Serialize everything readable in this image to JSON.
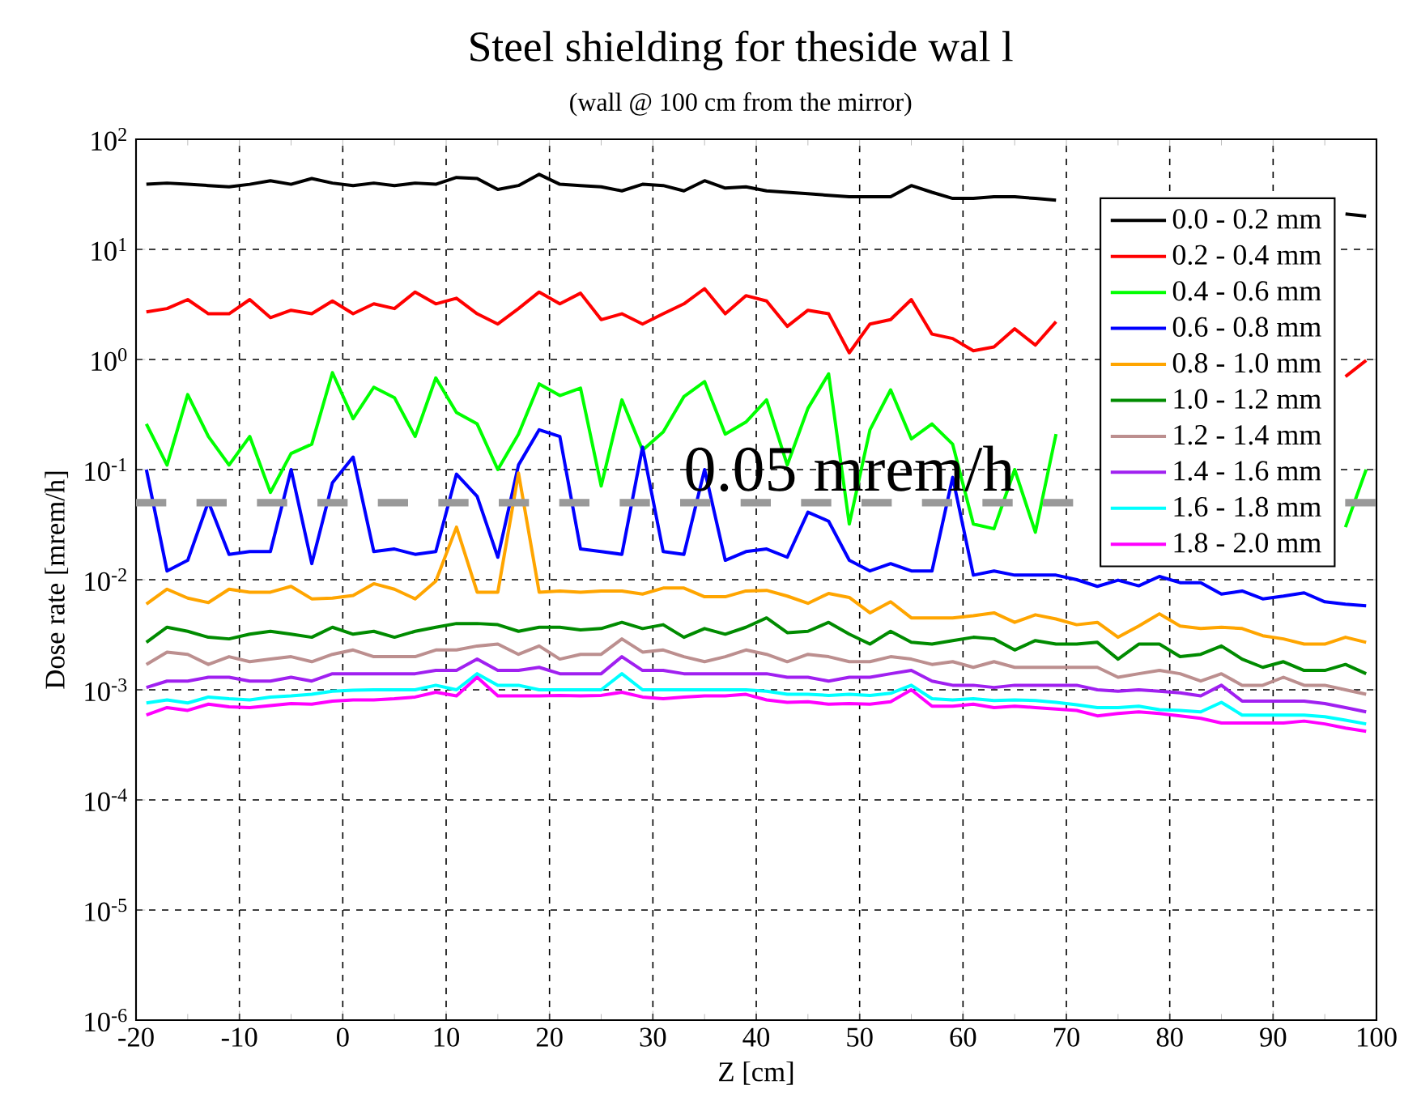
{
  "chart_data": {
    "type": "line",
    "title": "Steel shielding for theside wal l",
    "subtitle": "(wall @ 100 cm from the mirror)",
    "xlabel": "Z [cm]",
    "ylabel": "Dose rate [mrem/h]",
    "x": [
      -19,
      -17,
      -15,
      -13,
      -11,
      -9,
      -7,
      -5,
      -3,
      -1,
      1,
      3,
      5,
      7,
      9,
      11,
      13,
      15,
      17,
      19,
      21,
      23,
      25,
      27,
      29,
      31,
      33,
      35,
      37,
      39,
      41,
      43,
      45,
      47,
      49,
      51,
      53,
      55,
      57,
      59,
      61,
      63,
      65,
      67,
      69,
      71,
      73,
      75,
      77,
      79,
      81,
      83,
      85,
      87,
      89,
      91,
      93,
      95,
      97,
      99
    ],
    "series": [
      {
        "name": "0.0 - 0.2 mm",
        "color": "#000000",
        "values": [
          39,
          40,
          39,
          38,
          37,
          39,
          42,
          39,
          44,
          40,
          38,
          40,
          38,
          40,
          39,
          45,
          44,
          35,
          38,
          48,
          39,
          38,
          37,
          34,
          39,
          38,
          34,
          42,
          36,
          37,
          34,
          33,
          32,
          31,
          30,
          30,
          30,
          38,
          33,
          29,
          29,
          30,
          30,
          29,
          28,
          null,
          null,
          null,
          null,
          null,
          null,
          null,
          null,
          null,
          null,
          null,
          null,
          null,
          21,
          20
        ]
      },
      {
        "name": "0.2 - 0.4 mm",
        "color": "#ff0000",
        "values": [
          2.7,
          2.9,
          3.5,
          2.6,
          2.6,
          3.5,
          2.4,
          2.8,
          2.6,
          3.4,
          2.6,
          3.2,
          2.9,
          4.1,
          3.2,
          3.6,
          2.6,
          2.1,
          2.9,
          4.1,
          3.2,
          4.0,
          2.3,
          2.6,
          2.1,
          2.6,
          3.2,
          4.4,
          2.6,
          3.8,
          3.4,
          2.0,
          2.8,
          2.6,
          1.15,
          2.1,
          2.3,
          3.5,
          1.7,
          1.55,
          1.2,
          1.3,
          1.9,
          1.35,
          2.2,
          null,
          null,
          null,
          null,
          null,
          null,
          null,
          null,
          null,
          null,
          null,
          null,
          null,
          0.7,
          0.98
        ]
      },
      {
        "name": "0.4 - 0.6 mm",
        "color": "#00ff00",
        "values": [
          0.26,
          0.11,
          0.48,
          0.2,
          0.11,
          0.2,
          0.062,
          0.14,
          0.17,
          0.76,
          0.29,
          0.56,
          0.45,
          0.2,
          0.68,
          0.33,
          0.26,
          0.1,
          0.21,
          0.6,
          0.47,
          0.55,
          0.071,
          0.43,
          0.15,
          0.22,
          0.46,
          0.63,
          0.21,
          0.27,
          0.43,
          0.11,
          0.36,
          0.74,
          0.032,
          0.23,
          0.53,
          0.19,
          0.26,
          0.17,
          0.032,
          0.029,
          0.1,
          0.027,
          0.21,
          null,
          null,
          null,
          null,
          null,
          null,
          null,
          null,
          null,
          null,
          null,
          null,
          null,
          0.03,
          0.1
        ]
      },
      {
        "name": "0.6 - 0.8 mm",
        "color": "#0000ff",
        "values": [
          0.1,
          0.012,
          0.015,
          0.051,
          0.017,
          0.018,
          0.018,
          0.1,
          0.014,
          0.076,
          0.13,
          0.018,
          0.019,
          0.017,
          0.018,
          0.091,
          0.057,
          0.016,
          0.11,
          0.23,
          0.2,
          0.019,
          0.018,
          0.017,
          0.16,
          0.018,
          0.017,
          0.1,
          0.015,
          0.018,
          0.019,
          0.016,
          0.041,
          0.034,
          0.015,
          0.012,
          0.014,
          0.012,
          0.012,
          0.085,
          0.011,
          0.012,
          0.011,
          0.011,
          0.011,
          0.01,
          0.0087,
          0.0099,
          0.0088,
          0.0107,
          0.0094,
          0.0094,
          0.0074,
          0.0079,
          0.0067,
          0.0071,
          0.0076,
          0.0063,
          0.006,
          0.0058
        ]
      },
      {
        "name": "0.8 - 1.0 mm",
        "color": "#ffa500",
        "values": [
          0.006,
          0.0082,
          0.0068,
          0.0062,
          0.0082,
          0.0077,
          0.0077,
          0.0087,
          0.0067,
          0.0068,
          0.0072,
          0.0092,
          0.0082,
          0.0067,
          0.0097,
          0.03,
          0.0077,
          0.0077,
          0.093,
          0.0077,
          0.0079,
          0.0077,
          0.0079,
          0.0079,
          0.0074,
          0.0084,
          0.0084,
          0.007,
          0.007,
          0.0079,
          0.008,
          0.0071,
          0.0061,
          0.0075,
          0.0069,
          0.005,
          0.0063,
          0.0045,
          0.0045,
          0.0045,
          0.0047,
          0.005,
          0.0041,
          0.0048,
          0.0044,
          0.0039,
          0.0041,
          0.003,
          0.0038,
          0.0049,
          0.0038,
          0.0036,
          0.0037,
          0.0036,
          0.0031,
          0.0029,
          0.0026,
          0.0026,
          0.003,
          0.0027
        ]
      },
      {
        "name": "1.0 - 1.2 mm",
        "color": "#008b00",
        "values": [
          0.0027,
          0.0037,
          0.0034,
          0.003,
          0.0029,
          0.0032,
          0.0034,
          0.0032,
          0.003,
          0.0037,
          0.0032,
          0.0034,
          0.003,
          0.0034,
          0.0037,
          0.004,
          0.004,
          0.0039,
          0.0034,
          0.0037,
          0.0037,
          0.0035,
          0.0036,
          0.0041,
          0.0036,
          0.0039,
          0.003,
          0.0036,
          0.0032,
          0.0037,
          0.0045,
          0.0033,
          0.0034,
          0.0041,
          0.0032,
          0.0026,
          0.0034,
          0.0027,
          0.0026,
          0.0028,
          0.003,
          0.0029,
          0.0023,
          0.0028,
          0.0026,
          0.0026,
          0.0027,
          0.0019,
          0.0026,
          0.0026,
          0.002,
          0.0021,
          0.0025,
          0.0019,
          0.0016,
          0.0018,
          0.0015,
          0.0015,
          0.0017,
          0.0014
        ]
      },
      {
        "name": "1.2 - 1.4 mm",
        "color": "#bc8f8f",
        "values": [
          0.0017,
          0.0022,
          0.0021,
          0.0017,
          0.002,
          0.0018,
          0.0019,
          0.002,
          0.0018,
          0.0021,
          0.0023,
          0.002,
          0.002,
          0.002,
          0.0023,
          0.0023,
          0.0025,
          0.0026,
          0.0021,
          0.0025,
          0.0019,
          0.0021,
          0.0021,
          0.0029,
          0.0022,
          0.0023,
          0.002,
          0.0018,
          0.002,
          0.0023,
          0.0021,
          0.0018,
          0.0021,
          0.002,
          0.0018,
          0.0018,
          0.002,
          0.0019,
          0.0017,
          0.0018,
          0.0016,
          0.0018,
          0.0016,
          0.0016,
          0.0016,
          0.0016,
          0.0016,
          0.0013,
          0.0014,
          0.0015,
          0.0014,
          0.0012,
          0.0014,
          0.0011,
          0.0011,
          0.0013,
          0.0011,
          0.0011,
          0.001,
          0.00091
        ]
      },
      {
        "name": "1.4 - 1.6 mm",
        "color": "#a020f0",
        "values": [
          0.00105,
          0.0012,
          0.0012,
          0.0013,
          0.0013,
          0.0012,
          0.0012,
          0.0013,
          0.0012,
          0.0014,
          0.0014,
          0.0014,
          0.0014,
          0.0014,
          0.0015,
          0.0015,
          0.0019,
          0.0015,
          0.0015,
          0.0016,
          0.0014,
          0.0014,
          0.0014,
          0.002,
          0.0015,
          0.0015,
          0.0014,
          0.0014,
          0.0014,
          0.0014,
          0.0014,
          0.0013,
          0.0013,
          0.0012,
          0.0013,
          0.0013,
          0.0014,
          0.0015,
          0.0012,
          0.0011,
          0.0011,
          0.00105,
          0.0011,
          0.0011,
          0.0011,
          0.0011,
          0.001,
          0.00097,
          0.001,
          0.00097,
          0.00094,
          0.00088,
          0.0011,
          0.00079,
          0.00079,
          0.00079,
          0.00079,
          0.00075,
          0.00069,
          0.00063
        ]
      },
      {
        "name": "1.6 - 1.8 mm",
        "color": "#00ffff",
        "values": [
          0.00076,
          0.00081,
          0.00076,
          0.00086,
          0.00083,
          0.00081,
          0.00086,
          0.00088,
          0.00091,
          0.00097,
          0.00099,
          0.001,
          0.001,
          0.001,
          0.0011,
          0.001,
          0.0014,
          0.0011,
          0.0011,
          0.001,
          0.001,
          0.001,
          0.001,
          0.0014,
          0.001,
          0.001,
          0.001,
          0.001,
          0.001,
          0.001,
          0.00097,
          0.00091,
          0.00091,
          0.00089,
          0.00091,
          0.00089,
          0.00093,
          0.0011,
          0.00083,
          0.00081,
          0.00083,
          0.0008,
          0.00081,
          0.0008,
          0.00077,
          0.00073,
          0.00069,
          0.00069,
          0.00071,
          0.00066,
          0.00065,
          0.00063,
          0.00077,
          0.00059,
          0.00059,
          0.00059,
          0.00059,
          0.00057,
          0.00053,
          0.00049
        ]
      },
      {
        "name": "1.8 - 2.0 mm",
        "color": "#ff00ff",
        "values": [
          0.00059,
          0.00069,
          0.00065,
          0.00074,
          0.0007,
          0.00069,
          0.00072,
          0.00075,
          0.00074,
          0.00079,
          0.00081,
          0.00081,
          0.00083,
          0.00086,
          0.00095,
          0.00088,
          0.0013,
          0.00088,
          0.00088,
          0.00088,
          0.00089,
          0.00088,
          0.00089,
          0.00095,
          0.00086,
          0.00083,
          0.00086,
          0.00088,
          0.00088,
          0.00091,
          0.00081,
          0.00077,
          0.00078,
          0.00074,
          0.00075,
          0.00074,
          0.00078,
          0.001,
          0.00071,
          0.00071,
          0.00074,
          0.00069,
          0.00071,
          0.00069,
          0.00067,
          0.00065,
          0.00058,
          0.00061,
          0.00063,
          0.00061,
          0.00058,
          0.00055,
          0.0005,
          0.0005,
          0.0005,
          0.0005,
          0.00052,
          0.00049,
          0.00045,
          0.00042
        ]
      }
    ],
    "ref_lines": [
      {
        "axis": "y",
        "value": 0.05,
        "label": "0.05 mrem/h",
        "color": "#999999",
        "line_style": "dashed"
      }
    ],
    "xlim": [
      -20,
      100
    ],
    "ylim": [
      1e-06,
      100
    ],
    "log": "y",
    "xticks": [
      -20,
      -10,
      0,
      10,
      20,
      30,
      40,
      50,
      60,
      70,
      80,
      90,
      100
    ],
    "yticks": [
      {
        "value": 1e-06,
        "label": "10$^{-6}$"
      },
      {
        "value": 1e-05,
        "label": "10$^{-5}$"
      },
      {
        "value": 0.0001,
        "label": "10$^{-4}$"
      },
      {
        "value": 0.001,
        "label": "10$^{-3}$"
      },
      {
        "value": 0.01,
        "label": "10$^{-2}$"
      },
      {
        "value": 0.1,
        "label": "10$^{-1}$"
      },
      {
        "value": 1,
        "label": "10$^{0}$"
      },
      {
        "value": 10,
        "label": "10$^{1}$"
      },
      {
        "value": 100,
        "label": "10$^{2}$"
      }
    ],
    "grid": true,
    "legend": "top right",
    "marker": "none",
    "line_style": "solid"
  }
}
